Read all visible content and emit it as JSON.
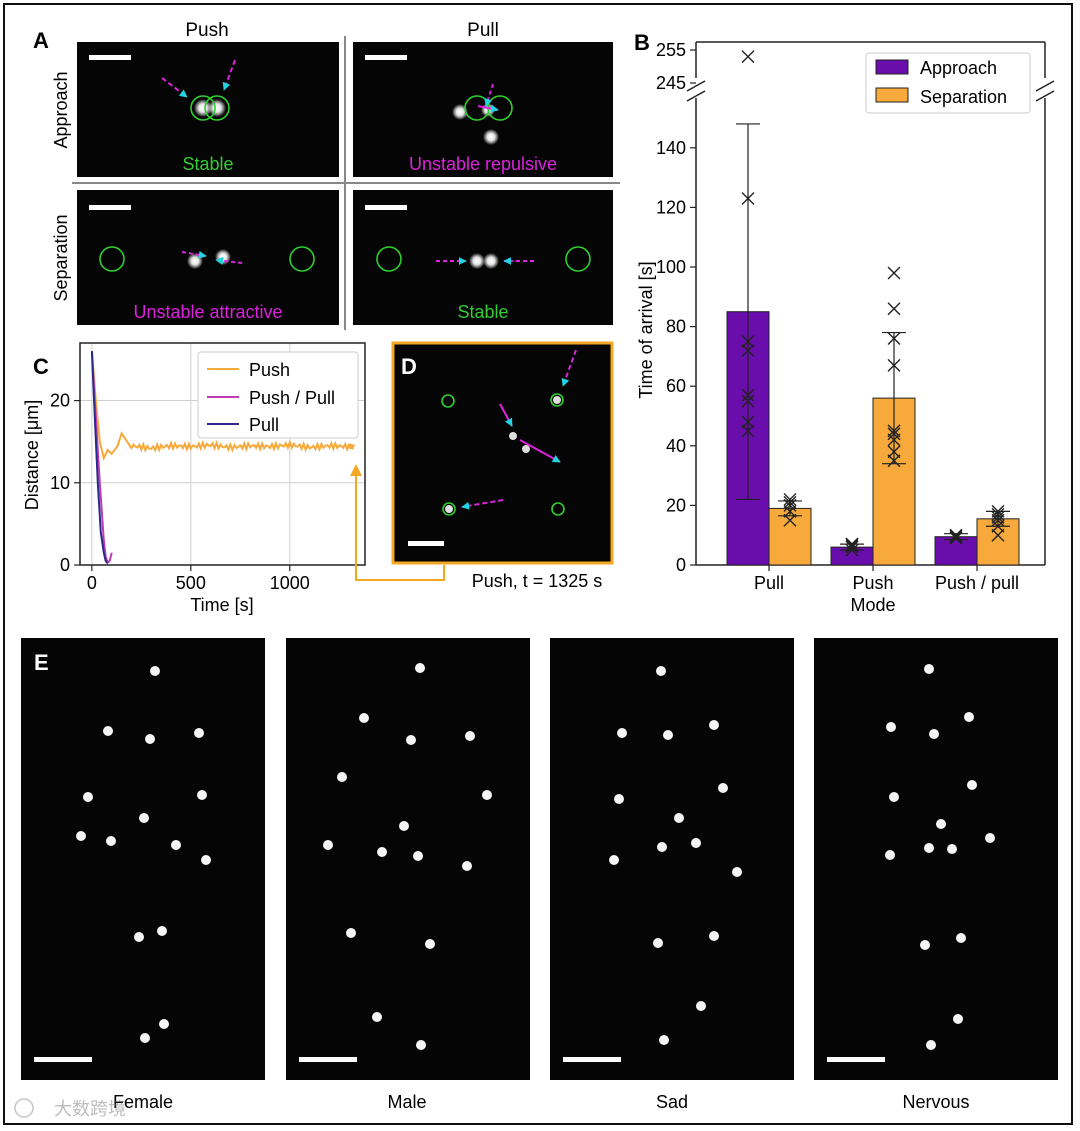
{
  "panel_letters": {
    "a": "A",
    "b": "B",
    "c": "C",
    "d": "D",
    "e": "E"
  },
  "panel_a": {
    "col_headers": [
      "Push",
      "Pull"
    ],
    "row_headers": [
      "Approach",
      "Separation"
    ],
    "captions": [
      "Stable",
      "Unstable repulsive",
      "Unstable attractive",
      "Stable"
    ],
    "colors": {
      "stable": "#33cc33",
      "unstable": "#dd22dd",
      "arrow": "#22d3e0",
      "circle": "#2fcf2f"
    }
  },
  "panel_d": {
    "caption": "Push, t = 1325 s",
    "border_color": "#f5a623"
  },
  "panel_e": {
    "labels": [
      "Female",
      "Male",
      "Sad",
      "Nervous"
    ]
  },
  "watermark": "大数跨境",
  "chart_data": [
    {
      "id": "B",
      "type": "bar",
      "ylabel": "Time of arrival [s]",
      "xlabel": "Mode",
      "categories": [
        "Pull",
        "Push",
        "Push / pull"
      ],
      "y_ticks": [
        0,
        20,
        40,
        60,
        80,
        100,
        120,
        140
      ],
      "y_break_ticks": [
        245,
        255
      ],
      "ylim": [
        0,
        150
      ],
      "legend": "top-right",
      "series": [
        {
          "name": "Approach",
          "color": "#6a0dad",
          "values": [
            85,
            6,
            9.5
          ],
          "err": [
            63,
            1,
            1
          ],
          "points": [
            [
              45,
              48,
              55,
              57,
              72,
              75,
              123,
              253
            ],
            [
              5,
              6,
              6.5,
              7,
              7
            ],
            [
              9,
              9.5,
              10,
              10
            ]
          ]
        },
        {
          "name": "Separation",
          "color": "#f7a93b",
          "values": [
            19,
            56,
            15.5
          ],
          "err": [
            2.5,
            22,
            2.5
          ],
          "points": [
            [
              15,
              18,
              20,
              21,
              22
            ],
            [
              35,
              38,
              42,
              44,
              45,
              67,
              76,
              86,
              98
            ],
            [
              10,
              13,
              15,
              16,
              17,
              18
            ]
          ]
        }
      ]
    },
    {
      "id": "C",
      "type": "line",
      "xlabel": "Time [s]",
      "ylabel": "Distance [μm]",
      "x_ticks": [
        0,
        500,
        1000
      ],
      "y_ticks": [
        0,
        10,
        20
      ],
      "xlim": [
        -60,
        1380
      ],
      "ylim": [
        0,
        27
      ],
      "grid": true,
      "legend": "top-right",
      "series": [
        {
          "name": "Push",
          "color": "#f7a93b",
          "x": [
            0,
            20,
            40,
            60,
            80,
            100,
            130,
            150,
            200,
            300,
            400,
            500,
            600,
            700,
            800,
            900,
            1000,
            1100,
            1200,
            1300,
            1325
          ],
          "y": [
            26,
            20,
            15,
            13,
            14,
            13.5,
            14.5,
            16,
            14.5,
            14.2,
            14.5,
            14.4,
            14.6,
            14.3,
            14.5,
            14.4,
            14.6,
            14.3,
            14.5,
            14.4,
            14.4
          ]
        },
        {
          "name": "Push / Pull",
          "color": "#c03cb4",
          "x": [
            0,
            20,
            40,
            60,
            70,
            80,
            90,
            100
          ],
          "y": [
            26,
            18,
            10,
            3,
            1,
            0.3,
            0.5,
            1.5
          ]
        },
        {
          "name": "Pull",
          "color": "#2a2a8a",
          "x": [
            0,
            15,
            30,
            45,
            60,
            70,
            80
          ],
          "y": [
            26,
            18,
            10,
            4,
            1.5,
            0.5,
            0.2
          ]
        }
      ]
    }
  ]
}
